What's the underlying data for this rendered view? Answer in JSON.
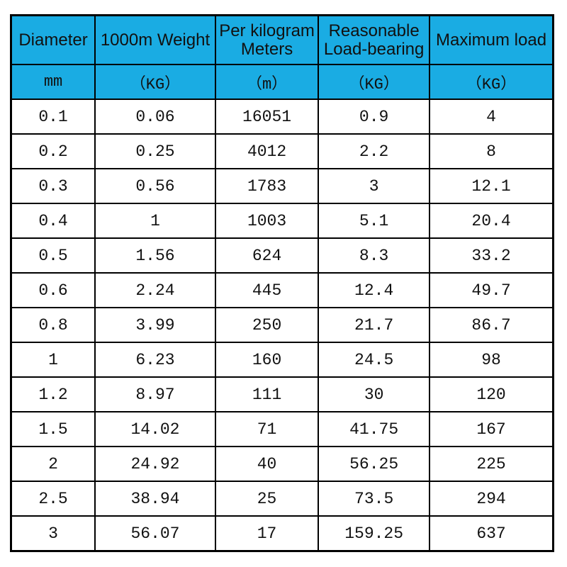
{
  "chart_data": {
    "type": "table",
    "columns": [
      {
        "title": "Diameter",
        "unit": "mm"
      },
      {
        "title": "1000m Weight",
        "unit": "（KG）"
      },
      {
        "title": "Per kilogram Meters",
        "unit": "（m）"
      },
      {
        "title": "Reasonable Load-bearing",
        "unit": "（KG）"
      },
      {
        "title": "Maximum load",
        "unit": "（KG）"
      }
    ],
    "rows": [
      [
        "0.1",
        "0.06",
        "16051",
        "0.9",
        "4"
      ],
      [
        "0.2",
        "0.25",
        "4012",
        "2.2",
        "8"
      ],
      [
        "0.3",
        "0.56",
        "1783",
        "3",
        "12.1"
      ],
      [
        "0.4",
        "1",
        "1003",
        "5.1",
        "20.4"
      ],
      [
        "0.5",
        "1.56",
        "624",
        "8.3",
        "33.2"
      ],
      [
        "0.6",
        "2.24",
        "445",
        "12.4",
        "49.7"
      ],
      [
        "0.8",
        "3.99",
        "250",
        "21.7",
        "86.7"
      ],
      [
        "1",
        "6.23",
        "160",
        "24.5",
        "98"
      ],
      [
        "1.2",
        "8.97",
        "111",
        "30",
        "120"
      ],
      [
        "1.5",
        "14.02",
        "71",
        "41.75",
        "167"
      ],
      [
        "2",
        "24.92",
        "40",
        "56.25",
        "225"
      ],
      [
        "2.5",
        "38.94",
        "25",
        "73.5",
        "294"
      ],
      [
        "3",
        "56.07",
        "17",
        "159.25",
        "637"
      ]
    ],
    "colors": {
      "header_bg": "#1aace3",
      "border": "#000000",
      "text": "#111111"
    },
    "layout": {
      "grid": "all-borders",
      "header_rows": 2
    }
  }
}
